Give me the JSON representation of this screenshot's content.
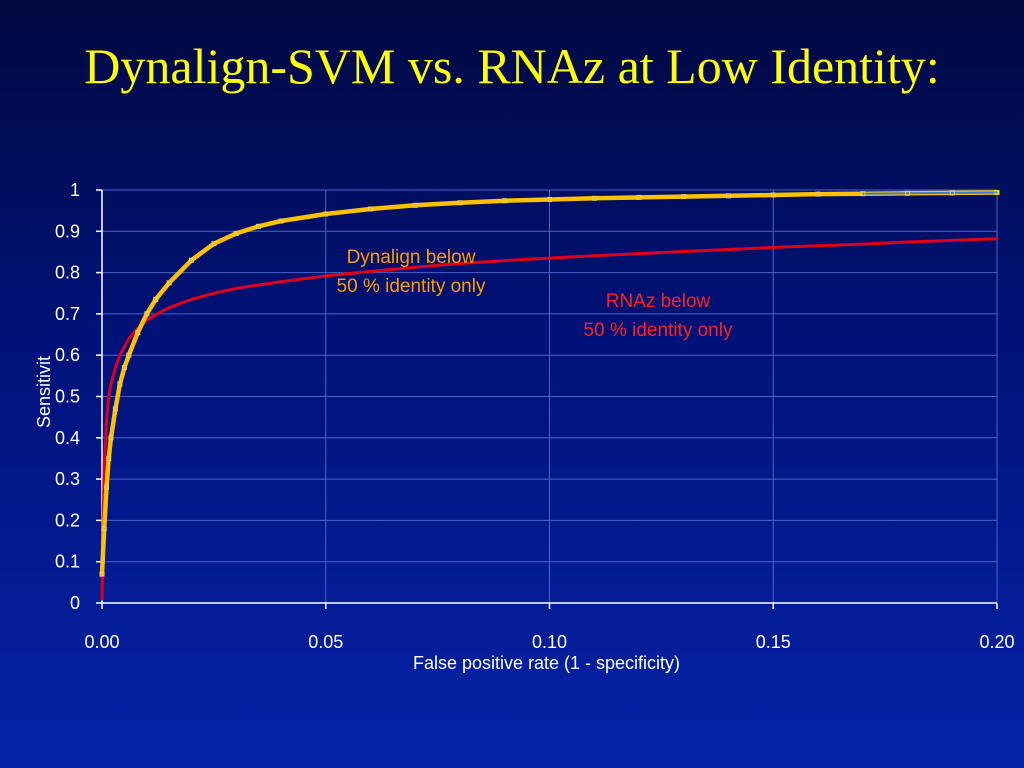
{
  "slide": {
    "title": "Dynalign-SVM vs. RNAz at Low Identity:"
  },
  "colors": {
    "background": "#00127a",
    "title": "#ffff00",
    "axis": "#ffffff",
    "grid": "#4a63c8",
    "dynalign": "#ffc000",
    "rnaz": "#e0001a",
    "dynalign_annotation": "#ff9900",
    "rnaz_annotation": "#ff2020",
    "tail_line": "#3a7bd5"
  },
  "chart_data": {
    "type": "line",
    "xlabel": "False positive rate (1 - specificity)",
    "ylabel": "Sensitivit",
    "xlim": [
      0,
      0.2
    ],
    "ylim": [
      0,
      1
    ],
    "x_ticks": [
      0,
      0.05,
      0.1,
      0.15,
      0.2
    ],
    "x_tick_labels": [
      "0.00",
      "0.05",
      "0.10",
      "0.15",
      "0.20"
    ],
    "y_ticks": [
      0,
      0.1,
      0.2,
      0.3,
      0.4,
      0.5,
      0.6,
      0.7,
      0.8,
      0.9,
      1
    ],
    "y_tick_labels": [
      "0",
      "0.1",
      "0.2",
      "0.3",
      "0.4",
      "0.5",
      "0.6",
      "0.7",
      "0.8",
      "0.9",
      "1"
    ],
    "grid": true,
    "series": [
      {
        "key": "dynalign",
        "name": "Dynalign below 50 % identity only",
        "color": "#ffc000",
        "marker": "small-square",
        "x": [
          0,
          0.0005,
          0.001,
          0.0015,
          0.002,
          0.003,
          0.004,
          0.005,
          0.006,
          0.008,
          0.01,
          0.012,
          0.015,
          0.02,
          0.025,
          0.03,
          0.035,
          0.04,
          0.05,
          0.06,
          0.07,
          0.08,
          0.09,
          0.1,
          0.11,
          0.12,
          0.13,
          0.14,
          0.15,
          0.16,
          0.17,
          0.18,
          0.19,
          0.2
        ],
        "y": [
          0.07,
          0.18,
          0.28,
          0.35,
          0.4,
          0.47,
          0.53,
          0.57,
          0.6,
          0.655,
          0.7,
          0.735,
          0.775,
          0.83,
          0.87,
          0.895,
          0.912,
          0.925,
          0.942,
          0.954,
          0.963,
          0.969,
          0.974,
          0.977,
          0.98,
          0.982,
          0.984,
          0.986,
          0.988,
          0.99,
          0.991,
          0.992,
          0.993,
          0.994
        ]
      },
      {
        "key": "rnaz",
        "name": "RNAz below 50 % identity only",
        "color": "#e0001a",
        "marker": "none",
        "x": [
          0,
          0.0003,
          0.0005,
          0.001,
          0.0015,
          0.002,
          0.003,
          0.004,
          0.005,
          0.006,
          0.008,
          0.01,
          0.012,
          0.015,
          0.02,
          0.025,
          0.03,
          0.04,
          0.05,
          0.06,
          0.07,
          0.08,
          0.09,
          0.1,
          0.11,
          0.12,
          0.13,
          0.14,
          0.15,
          0.16,
          0.17,
          0.18,
          0.19,
          0.2
        ],
        "y": [
          0.01,
          0.22,
          0.33,
          0.44,
          0.5,
          0.53,
          0.57,
          0.6,
          0.62,
          0.64,
          0.665,
          0.685,
          0.698,
          0.715,
          0.735,
          0.75,
          0.762,
          0.778,
          0.792,
          0.803,
          0.813,
          0.822,
          0.829,
          0.835,
          0.841,
          0.846,
          0.851,
          0.856,
          0.861,
          0.865,
          0.869,
          0.874,
          0.878,
          0.882
        ]
      }
    ],
    "annotations": [
      {
        "key": "dynalign",
        "lines": [
          "Dynalign below",
          "50 % identity only"
        ],
        "color": "#ff9900"
      },
      {
        "key": "rnaz",
        "lines": [
          "RNAz below",
          "50 % identity only"
        ],
        "color": "#ff2020"
      }
    ]
  }
}
